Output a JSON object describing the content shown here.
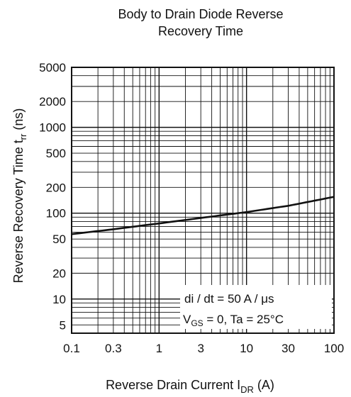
{
  "chart_data": {
    "type": "line",
    "title": [
      "Body to Drain Diode Reverse",
      "Recovery Time"
    ],
    "xlabel": {
      "main": "Reverse Drain Current  I",
      "sub": "DR",
      "unit": "  (A)"
    },
    "ylabel": {
      "main": "Reverse Recovery Time  t",
      "sub": "rr",
      "unit": "  (ns)"
    },
    "x_scale": "log",
    "y_scale": "log",
    "xlim": [
      0.1,
      100
    ],
    "ylim": [
      4,
      5000
    ],
    "x_ticks": [
      0.1,
      0.3,
      1,
      3,
      10,
      30,
      100
    ],
    "x_tick_labels": [
      "0.1",
      "0.3",
      "1",
      "3",
      "10",
      "30",
      "100"
    ],
    "y_ticks": [
      5,
      10,
      20,
      50,
      100,
      200,
      500,
      1000,
      2000,
      5000
    ],
    "y_tick_labels": [
      "5",
      "10",
      "20",
      "50",
      "100",
      "200",
      "500",
      "1000",
      "2000",
      "5000"
    ],
    "grid": true,
    "series": [
      {
        "x": [
          0.1,
          0.3,
          1,
          3,
          10,
          30,
          100
        ],
        "y": [
          57,
          65,
          76,
          88,
          103,
          122,
          155
        ]
      }
    ],
    "annotations": [
      {
        "text": "di / dt = 50 A / μs"
      },
      {
        "main": "V",
        "sub": "GS",
        "rest": " = 0, Ta = 25°C"
      }
    ]
  }
}
